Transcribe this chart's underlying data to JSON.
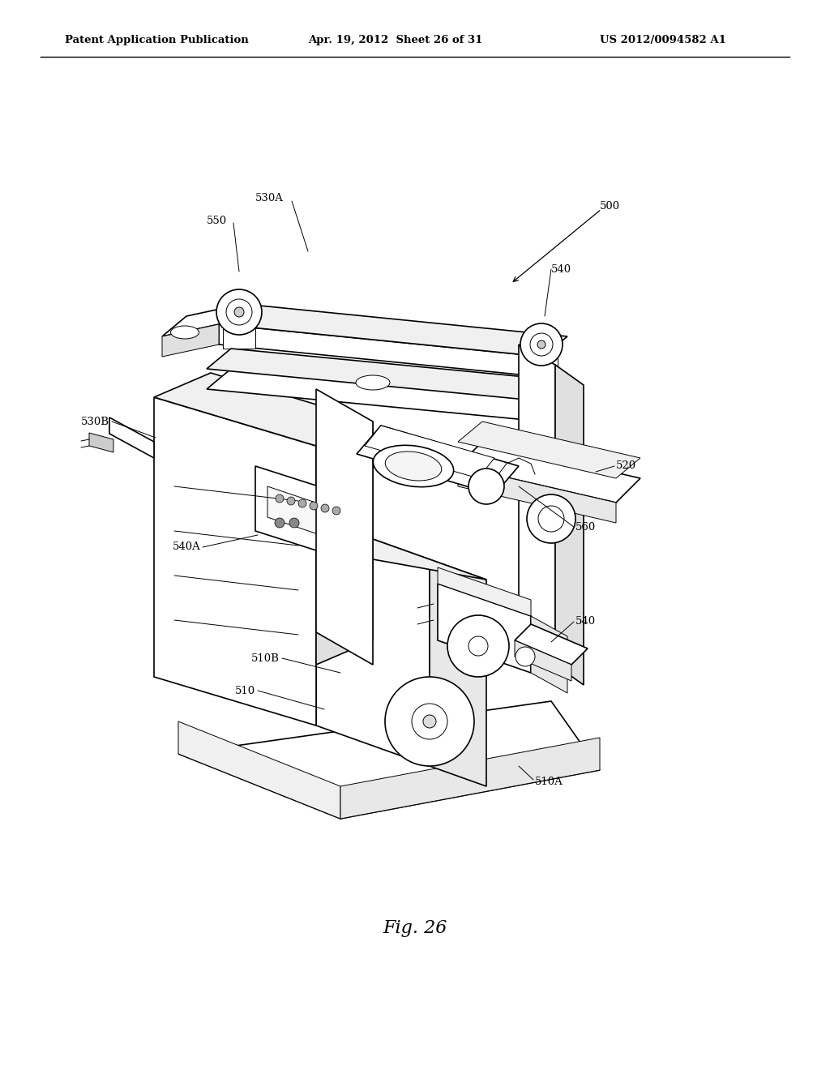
{
  "bg_color": "#ffffff",
  "header_line1": "Patent Application Publication",
  "header_line2": "Apr. 19, 2012  Sheet 26 of 31",
  "header_line3": "US 2012/0094582 A1",
  "fig_label": "Fig. 26",
  "label_fontsize": 9.5,
  "fig_label_fontsize": 16
}
